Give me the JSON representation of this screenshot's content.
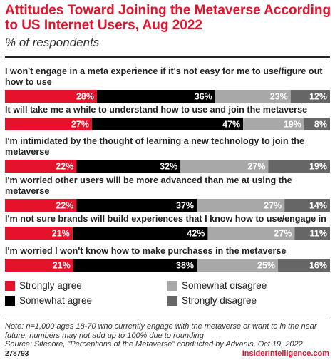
{
  "header": {
    "title": "Attitudes Toward Joining the Metaverse According to US Internet Users, Aug 2022",
    "subtitle": "% of respondents"
  },
  "colors": {
    "strongly_agree": "#e5122b",
    "somewhat_agree": "#000000",
    "somewhat_disagree": "#a8a8a8",
    "strongly_disagree": "#666666",
    "accent": "#e5122b"
  },
  "chart_data": {
    "type": "bar",
    "orientation": "horizontal-stacked-100",
    "title": "Attitudes Toward Joining the Metaverse According to US Internet Users, Aug 2022",
    "subtitle": "% of respondents",
    "unit": "%",
    "categories": [
      [
        "I won't engage in a meta experience if it's not easy for me to use/figure out",
        "how to use"
      ],
      [
        "It will take me a while to understand how to use and join the metaverse"
      ],
      [
        "I'm intimidated by the thought of learning a new technology to join the",
        "metaverse"
      ],
      [
        "I'm worried other users will be more advanced than me at using the",
        "metaverse"
      ],
      [
        "I'm not sure brands will build experiences that I know how to use/engage in"
      ],
      [
        "I'm worried I won't know how to make purchases in the metaverse"
      ]
    ],
    "series": [
      {
        "name": "Strongly agree",
        "values": [
          28,
          27,
          22,
          22,
          21,
          21
        ]
      },
      {
        "name": "Somewhat agree",
        "values": [
          36,
          47,
          32,
          37,
          42,
          38
        ]
      },
      {
        "name": "Somewhat disagree",
        "values": [
          23,
          19,
          27,
          27,
          27,
          25
        ]
      },
      {
        "name": "Strongly disagree",
        "values": [
          12,
          8,
          19,
          14,
          11,
          16
        ]
      }
    ],
    "legend_position": "bottom",
    "grid": false
  },
  "legend": {
    "items": [
      "Strongly agree",
      "Somewhat agree",
      "Somewhat disagree",
      "Strongly disagree"
    ]
  },
  "footer": {
    "note_line1": "Note: n=1,000 ages 18-70 who currently engage with the metaverse or want to in the near",
    "note_line2": "future; numbers may not add up to 100% due to rounding",
    "source": "Source: Sitecore, \"Perceptions of the Metaverse\" conducted by Advanis, Oct 19, 2022",
    "chart_id": "278793",
    "brand": "InsiderIntelligence.com"
  }
}
